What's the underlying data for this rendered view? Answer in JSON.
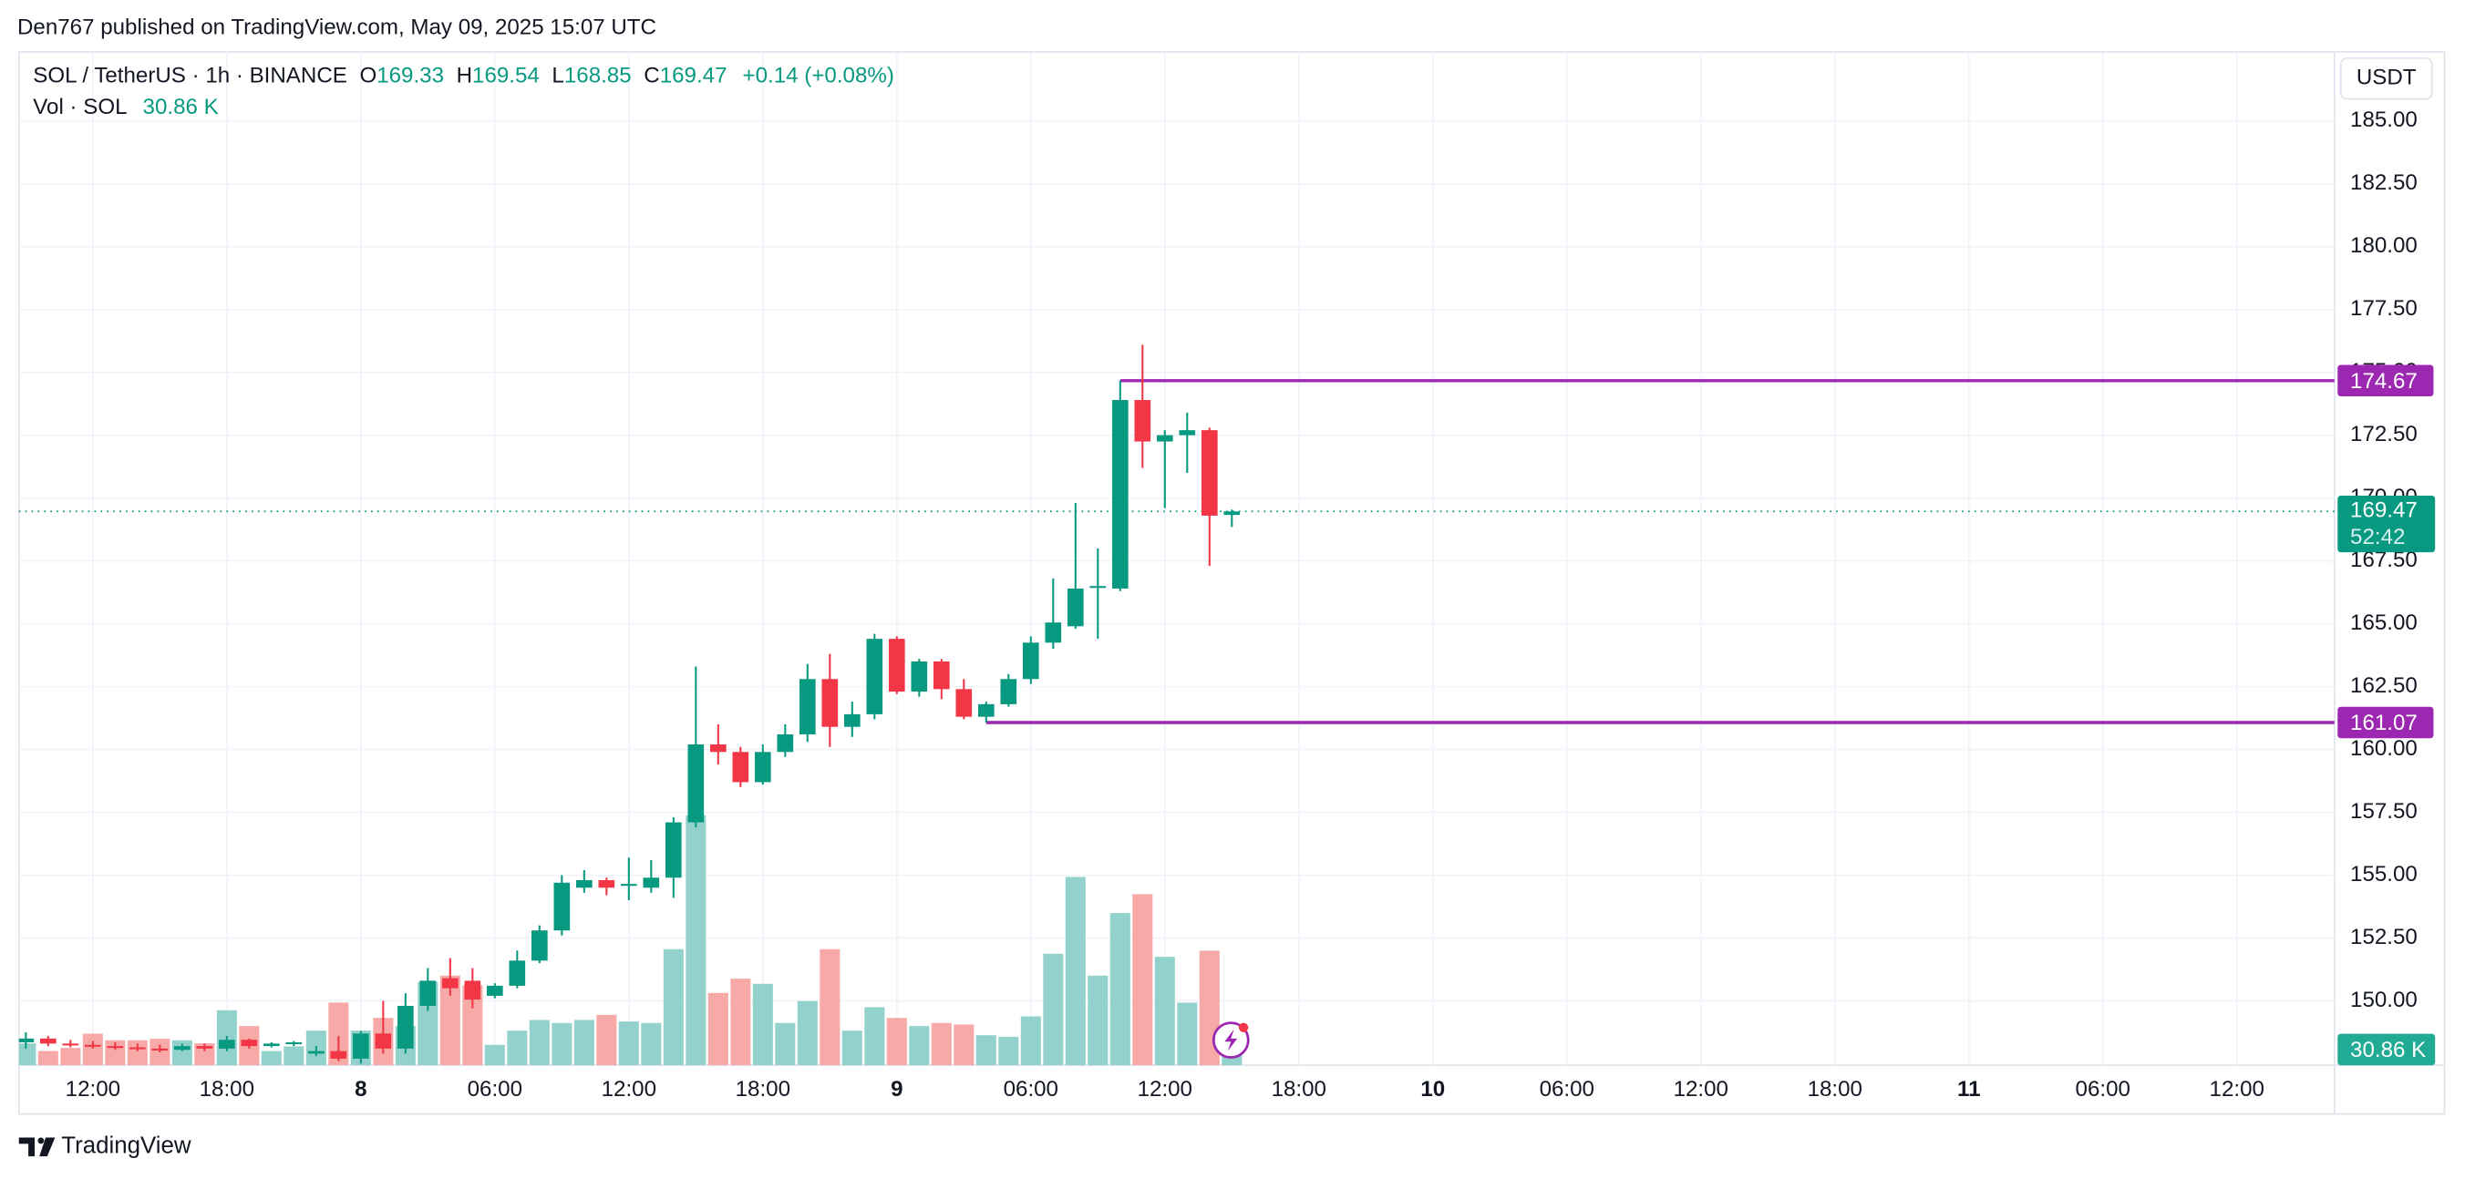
{
  "header": "Den767 published on TradingView.com, May 09, 2025 15:07 UTC",
  "footer": "TradingView",
  "chart_data": {
    "type": "candlestick",
    "symbol": "SOL / TetherUS · 1h · BINANCE",
    "legend_o": "O",
    "legend_h": "H",
    "legend_l": "L",
    "legend_c": "C",
    "change": "+0.14 (+0.08%)",
    "volume_title": "Vol · SOL",
    "last_volume_label": "30.86 K",
    "currency": "USDT",
    "countdown": "52:42",
    "up_color": "#089981",
    "down_color": "#f23645",
    "volume_up_color": "#93d2cc",
    "volume_down_color": "#f7a9a7",
    "hline_color": "#9c27b0",
    "grid": true,
    "x": [
      9,
      10,
      11,
      12,
      13,
      14,
      15,
      16,
      17,
      18,
      19,
      20,
      21,
      22,
      23,
      24,
      25,
      26,
      27,
      28,
      29,
      30,
      31,
      32,
      33,
      34,
      35,
      36,
      37,
      38,
      39,
      40,
      41,
      42,
      43,
      44,
      45,
      46,
      47,
      48,
      49,
      50,
      51,
      52,
      53,
      54,
      55,
      56,
      57,
      58,
      59,
      60,
      61,
      62,
      63
    ],
    "open": [
      148.35,
      148.5,
      148.3,
      148.25,
      148.2,
      148.15,
      148.1,
      148.05,
      148.2,
      148.1,
      148.45,
      148.2,
      148.3,
      147.9,
      148.0,
      147.7,
      148.7,
      148.1,
      149.8,
      150.9,
      150.8,
      150.2,
      150.6,
      151.6,
      152.8,
      154.5,
      154.8,
      154.6,
      154.5,
      154.9,
      157.1,
      160.2,
      159.9,
      158.7,
      159.9,
      160.6,
      162.8,
      160.9,
      161.4,
      164.4,
      162.3,
      163.5,
      162.4,
      161.3,
      161.8,
      162.8,
      164.25,
      164.9,
      166.5,
      166.4,
      173.9,
      172.25,
      172.5,
      172.7,
      169.33
    ],
    "high": [
      148.75,
      148.6,
      148.45,
      148.4,
      148.35,
      148.3,
      148.25,
      148.3,
      148.3,
      148.6,
      148.5,
      148.35,
      148.4,
      148.2,
      148.6,
      148.8,
      150.0,
      150.3,
      151.3,
      151.7,
      151.3,
      150.7,
      152.0,
      153.0,
      155.0,
      155.2,
      154.9,
      155.7,
      155.6,
      157.3,
      163.3,
      161.0,
      160.1,
      160.2,
      161.0,
      163.4,
      163.8,
      161.9,
      164.6,
      164.5,
      163.6,
      163.6,
      162.8,
      161.9,
      163.0,
      164.5,
      166.8,
      169.8,
      168.0,
      174.67,
      176.1,
      172.7,
      173.4,
      172.8,
      169.54
    ],
    "low": [
      148.1,
      148.2,
      148.15,
      148.1,
      148.05,
      148.0,
      147.95,
      148.0,
      148.0,
      148.0,
      148.1,
      148.15,
      148.2,
      147.8,
      147.6,
      147.5,
      147.9,
      147.9,
      149.6,
      150.2,
      149.7,
      150.1,
      150.5,
      151.5,
      152.6,
      154.3,
      154.2,
      154.0,
      154.3,
      154.1,
      156.9,
      159.4,
      158.5,
      158.6,
      159.7,
      160.3,
      160.1,
      160.5,
      161.2,
      162.2,
      162.1,
      162.0,
      161.2,
      161.07,
      161.7,
      162.6,
      164.0,
      164.8,
      164.4,
      166.3,
      171.2,
      169.6,
      171.0,
      167.3,
      168.85
    ],
    "close": [
      148.5,
      148.3,
      148.25,
      148.2,
      148.15,
      148.1,
      148.05,
      148.2,
      148.1,
      148.45,
      148.2,
      148.3,
      148.35,
      148.0,
      147.7,
      148.7,
      148.1,
      149.8,
      150.8,
      150.5,
      150.05,
      150.6,
      151.6,
      152.8,
      154.7,
      154.8,
      154.5,
      154.65,
      154.9,
      157.1,
      160.2,
      159.9,
      158.7,
      159.9,
      160.6,
      162.8,
      160.9,
      161.4,
      164.4,
      162.3,
      163.5,
      162.4,
      161.3,
      161.8,
      162.8,
      164.25,
      165.05,
      166.4,
      166.5,
      173.9,
      172.25,
      172.5,
      172.7,
      169.3,
      169.47
    ],
    "volume": [
      43000,
      28000,
      34000,
      62000,
      49000,
      49000,
      52000,
      49000,
      43000,
      108000,
      77000,
      28000,
      37000,
      68000,
      123000,
      68000,
      93000,
      77000,
      164000,
      176000,
      157000,
      40000,
      68000,
      89000,
      83000,
      89000,
      99000,
      86000,
      83000,
      228000,
      491000,
      142000,
      170000,
      160000,
      83000,
      126000,
      228000,
      68000,
      114000,
      93000,
      77000,
      83000,
      80000,
      59000,
      56000,
      96000,
      219000,
      370000,
      176000,
      299000,
      336000,
      213000,
      123000,
      225000,
      30860
    ],
    "xlim": [
      8.69,
      112.37
    ],
    "ylim": [
      147.4375,
      187.75
    ],
    "volume_lim": [
      0,
      2000000
    ],
    "xticks": [
      {
        "value": 12,
        "label": "12:00"
      },
      {
        "value": 18,
        "label": "18:00"
      },
      {
        "value": 24,
        "label": "8"
      },
      {
        "value": 30,
        "label": "06:00"
      },
      {
        "value": 36,
        "label": "12:00"
      },
      {
        "value": 42,
        "label": "18:00"
      },
      {
        "value": 48,
        "label": "9"
      },
      {
        "value": 54,
        "label": "06:00"
      },
      {
        "value": 60,
        "label": "12:00"
      },
      {
        "value": 66,
        "label": "18:00"
      },
      {
        "value": 72,
        "label": "10"
      },
      {
        "value": 78,
        "label": "06:00"
      },
      {
        "value": 84,
        "label": "12:00"
      },
      {
        "value": 90,
        "label": "18:00"
      },
      {
        "value": 96,
        "label": "11"
      },
      {
        "value": 102,
        "label": "06:00"
      },
      {
        "value": 108,
        "label": "12:00"
      }
    ],
    "yticks": [
      {
        "value": 150,
        "label": "150.00"
      },
      {
        "value": 152.5,
        "label": "152.50"
      },
      {
        "value": 155,
        "label": "155.00"
      },
      {
        "value": 157.5,
        "label": "157.50"
      },
      {
        "value": 160,
        "label": "160.00"
      },
      {
        "value": 162.5,
        "label": "162.50"
      },
      {
        "value": 165,
        "label": "165.00"
      },
      {
        "value": 167.5,
        "label": "167.50"
      },
      {
        "value": 170,
        "label": "170.00"
      },
      {
        "value": 172.5,
        "label": "172.50"
      },
      {
        "value": 175,
        "label": "175.00"
      },
      {
        "value": 177.5,
        "label": "177.50"
      },
      {
        "value": 180,
        "label": "180.00"
      },
      {
        "value": 182.5,
        "label": "182.50"
      },
      {
        "value": 185,
        "label": "185.00"
      }
    ],
    "hlines": [
      {
        "value": 174.67,
        "label": "174.67",
        "start": 58
      },
      {
        "value": 161.07,
        "label": "161.07",
        "start": 52
      }
    ]
  }
}
